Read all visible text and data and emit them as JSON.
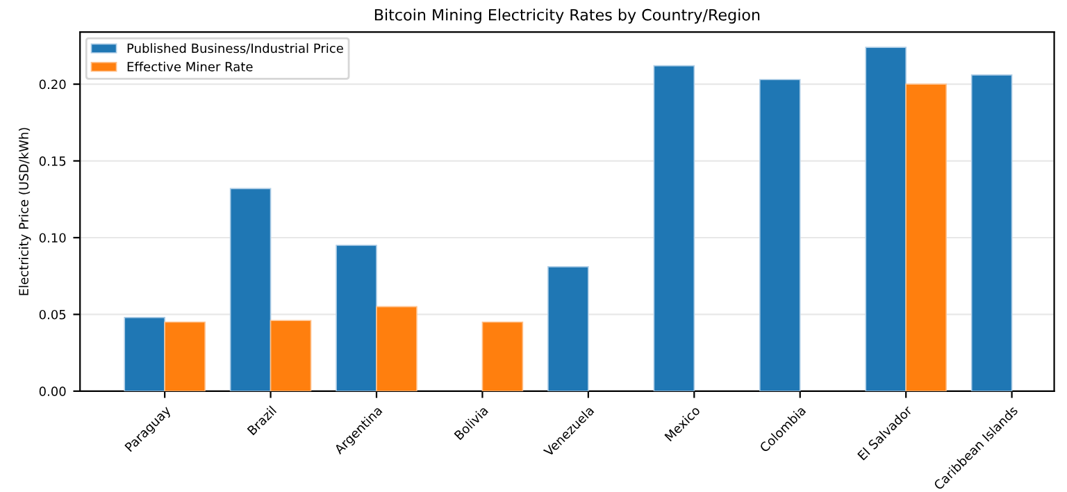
{
  "chart_data": {
    "type": "bar",
    "title": "Bitcoin Mining Electricity Rates by Country/Region",
    "ylabel": "Electricity Price (USD/kWh)",
    "categories": [
      "Paraguay",
      "Brazil",
      "Argentina",
      "Bolivia",
      "Venezuela",
      "Mexico",
      "Colombia",
      "El Salvador",
      "Caribbean Islands"
    ],
    "series": [
      {
        "name": "Published Business/Industrial Price",
        "color": "#1f77b4",
        "values": [
          0.048,
          0.132,
          0.095,
          null,
          0.081,
          0.212,
          0.203,
          0.224,
          0.206
        ]
      },
      {
        "name": "Effective Miner Rate",
        "color": "#ff7f0e",
        "values": [
          0.045,
          0.046,
          0.055,
          0.045,
          null,
          null,
          null,
          0.2,
          null
        ]
      }
    ],
    "ylim": [
      0,
      0.234
    ],
    "yticks": [
      {
        "value": 0,
        "label": "0.00"
      },
      {
        "value": 0.05,
        "label": "0.05"
      },
      {
        "value": 0.1,
        "label": "0.10"
      },
      {
        "value": 0.15,
        "label": "0.15"
      },
      {
        "value": 0.2,
        "label": "0.20"
      }
    ],
    "grid": "y",
    "legend": "top left"
  }
}
